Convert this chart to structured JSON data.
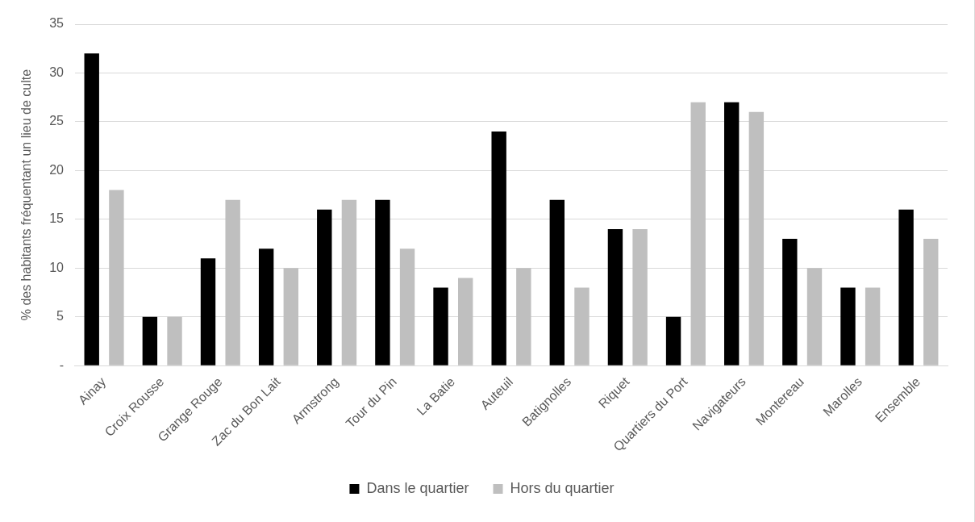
{
  "chart_data": {
    "type": "bar",
    "ylabel": "% des habitants fréquentant un lieu de culte",
    "categories": [
      "Ainay",
      "Croix Rousse",
      "Grange Rouge",
      "Zac du Bon Lait",
      "Armstrong",
      "Tour du Pin",
      "La Batie",
      "Auteuil",
      "Batignolles",
      "Riquet",
      "Quartiers du Port",
      "Navigateurs",
      "Montereau",
      "Marolles",
      "Ensemble"
    ],
    "series": [
      {
        "name": "Dans le quartier",
        "color": "#000000",
        "values": [
          32,
          5,
          11,
          12,
          16,
          17,
          8,
          24,
          17,
          14,
          5,
          27,
          13,
          8,
          16
        ]
      },
      {
        "name": "Hors du quartier",
        "color": "#bfbfbf",
        "values": [
          18,
          5,
          17,
          10,
          17,
          12,
          9,
          10,
          8,
          14,
          27,
          26,
          10,
          8,
          13
        ]
      }
    ],
    "ylim": [
      0,
      35
    ],
    "yticks": [
      {
        "value": 0,
        "label": "-"
      },
      5,
      10,
      15,
      20,
      25,
      30,
      35
    ],
    "grid": "y",
    "legend": "bottom"
  }
}
